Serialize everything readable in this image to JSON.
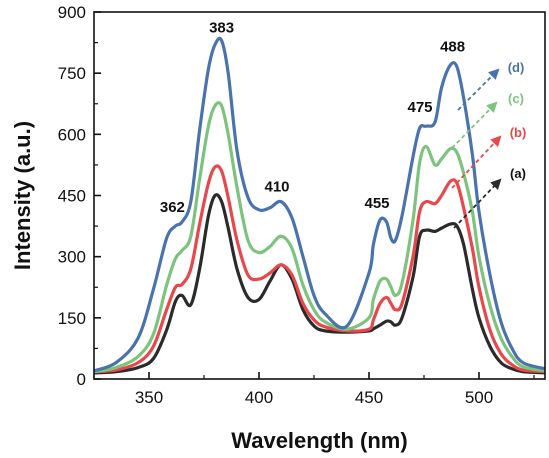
{
  "chart_data": {
    "type": "line",
    "title": "",
    "xlabel": "Wavelength (nm)",
    "ylabel": "Intensity (a.u.)",
    "xlim": [
      325,
      530
    ],
    "ylim": [
      0,
      900
    ],
    "xticks": [
      350,
      400,
      450,
      500
    ],
    "yticks": [
      0,
      150,
      300,
      450,
      600,
      750,
      900
    ],
    "grid": false,
    "peak_annotations": [
      {
        "text": "362",
        "x": 362,
        "y": 390
      },
      {
        "text": "383",
        "x": 383,
        "y": 830
      },
      {
        "text": "410",
        "x": 410,
        "y": 435
      },
      {
        "text": "455",
        "x": 455,
        "y": 395
      },
      {
        "text": "475",
        "x": 475,
        "y": 625
      },
      {
        "text": "488",
        "x": 488,
        "y": 778
      }
    ],
    "series": [
      {
        "name": "(a)",
        "color": "#2b2b2b",
        "x": [
          325,
          335,
          345,
          352,
          358,
          362,
          365,
          369,
          373,
          377,
          380,
          383,
          386,
          390,
          395,
          400,
          405,
          410,
          415,
          420,
          425,
          430,
          440,
          450,
          452,
          455,
          458,
          460,
          462,
          465,
          470,
          473,
          476,
          480,
          483,
          487,
          490,
          493,
          497,
          500,
          505,
          510,
          515,
          520,
          530
        ],
        "y": [
          15,
          18,
          28,
          50,
          120,
          190,
          205,
          182,
          270,
          400,
          450,
          435,
          370,
          270,
          200,
          195,
          240,
          280,
          245,
          170,
          130,
          118,
          115,
          118,
          123,
          132,
          142,
          140,
          132,
          150,
          250,
          350,
          365,
          362,
          370,
          380,
          375,
          330,
          220,
          150,
          80,
          40,
          25,
          18,
          15
        ]
      },
      {
        "name": "(b)",
        "color": "#e8474b",
        "x": [
          325,
          335,
          345,
          352,
          358,
          362,
          365,
          369,
          373,
          377,
          380,
          383,
          386,
          390,
          395,
          400,
          405,
          410,
          415,
          420,
          425,
          430,
          440,
          450,
          452,
          455,
          458,
          460,
          462,
          465,
          470,
          473,
          476,
          480,
          483,
          487,
          490,
          493,
          497,
          500,
          505,
          510,
          515,
          520,
          530
        ],
        "y": [
          18,
          22,
          40,
          80,
          170,
          225,
          232,
          270,
          380,
          480,
          520,
          510,
          445,
          340,
          255,
          245,
          260,
          280,
          255,
          185,
          145,
          128,
          118,
          122,
          145,
          185,
          200,
          185,
          170,
          185,
          300,
          410,
          435,
          430,
          450,
          485,
          480,
          420,
          320,
          225,
          120,
          62,
          35,
          22,
          18
        ]
      },
      {
        "name": "(c)",
        "color": "#7dc37e",
        "x": [
          325,
          335,
          345,
          352,
          358,
          362,
          365,
          369,
          373,
          377,
          380,
          383,
          386,
          390,
          395,
          400,
          405,
          410,
          415,
          420,
          425,
          430,
          440,
          450,
          452,
          455,
          458,
          460,
          462,
          465,
          470,
          473,
          476,
          480,
          483,
          487,
          490,
          493,
          497,
          500,
          505,
          510,
          515,
          520,
          530
        ],
        "y": [
          18,
          28,
          55,
          110,
          230,
          295,
          315,
          350,
          490,
          620,
          670,
          670,
          600,
          470,
          340,
          310,
          325,
          350,
          320,
          230,
          170,
          140,
          122,
          150,
          195,
          240,
          245,
          225,
          205,
          235,
          390,
          530,
          570,
          525,
          540,
          565,
          555,
          505,
          410,
          300,
          180,
          100,
          55,
          30,
          20
        ]
      },
      {
        "name": "(d)",
        "color": "#4a73ad",
        "x": [
          325,
          335,
          345,
          352,
          358,
          362,
          365,
          369,
          373,
          377,
          380,
          383,
          386,
          390,
          395,
          400,
          405,
          410,
          415,
          420,
          425,
          430,
          440,
          450,
          452,
          455,
          458,
          460,
          462,
          465,
          470,
          473,
          476,
          480,
          483,
          487,
          490,
          493,
          497,
          500,
          505,
          510,
          515,
          520,
          530
        ],
        "y": [
          20,
          40,
          100,
          220,
          345,
          375,
          385,
          435,
          610,
          760,
          820,
          830,
          750,
          560,
          445,
          415,
          420,
          435,
          395,
          300,
          205,
          160,
          130,
          260,
          330,
          390,
          385,
          345,
          340,
          400,
          545,
          615,
          620,
          630,
          715,
          770,
          765,
          690,
          550,
          410,
          255,
          140,
          75,
          40,
          25
        ]
      }
    ],
    "legend": {
      "placement": "right, at curve ends with dashed arrows",
      "entries": [
        "(a)",
        "(b)",
        "(c)",
        "(d)"
      ]
    }
  }
}
